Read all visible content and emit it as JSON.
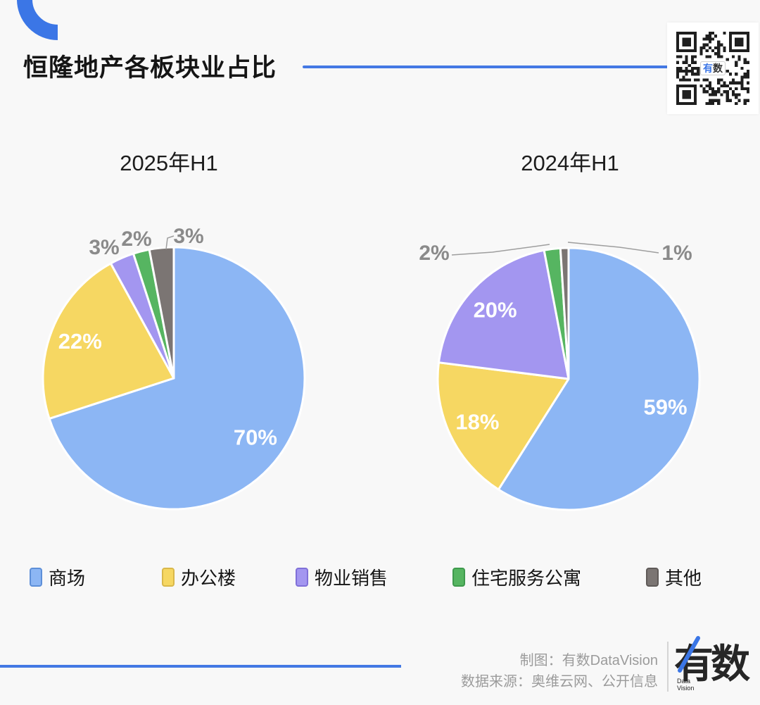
{
  "colors": {
    "background": "#f8f8f8",
    "accent_blue": "#4479e4",
    "arc_blue": "#3b76e6",
    "outside_label_gray": "#8a8a8a",
    "footer_text_gray": "#9b9b9b"
  },
  "header": {
    "title": "恒隆地产各板块业占比"
  },
  "qr": {
    "center_label_1": "有",
    "center_label_2": "数"
  },
  "legend": [
    {
      "label": "商场",
      "color": "#8cb6f4",
      "border": "#5d8fd8"
    },
    {
      "label": "办公楼",
      "color": "#f6d762",
      "border": "#d9b84a"
    },
    {
      "label": "物业销售",
      "color": "#a396f0",
      "border": "#8070d8"
    },
    {
      "label": "住宅服务公寓",
      "color": "#56b561",
      "border": "#3f9a4d"
    },
    {
      "label": "其他",
      "color": "#7b7573",
      "border": "#5f5a58"
    }
  ],
  "chart_data": [
    {
      "type": "pie",
      "title": "2025年H1",
      "categories": [
        "商场",
        "办公楼",
        "物业销售",
        "住宅服务公寓",
        "其他"
      ],
      "values": [
        70,
        22,
        3,
        2,
        3
      ],
      "labels": [
        "70%",
        "22%",
        "3%",
        "2%",
        "3%"
      ],
      "start_angle_deg": -90,
      "direction": "clockwise",
      "legend_position": "bottom"
    },
    {
      "type": "pie",
      "title": "2024年H1",
      "categories": [
        "商场",
        "办公楼",
        "物业销售",
        "住宅服务公寓",
        "其他"
      ],
      "values": [
        59,
        18,
        20,
        2,
        1
      ],
      "labels": [
        "59%",
        "18%",
        "20%",
        "2%",
        "1%"
      ],
      "start_angle_deg": -90,
      "direction": "clockwise",
      "legend_position": "bottom"
    }
  ],
  "footer": {
    "credit": "制图：有数DataVision",
    "source": "数据来源：奥维云网、公开信息",
    "logo_text": "有数",
    "logo_sub_line1": "Data",
    "logo_sub_line2": "Vision"
  }
}
